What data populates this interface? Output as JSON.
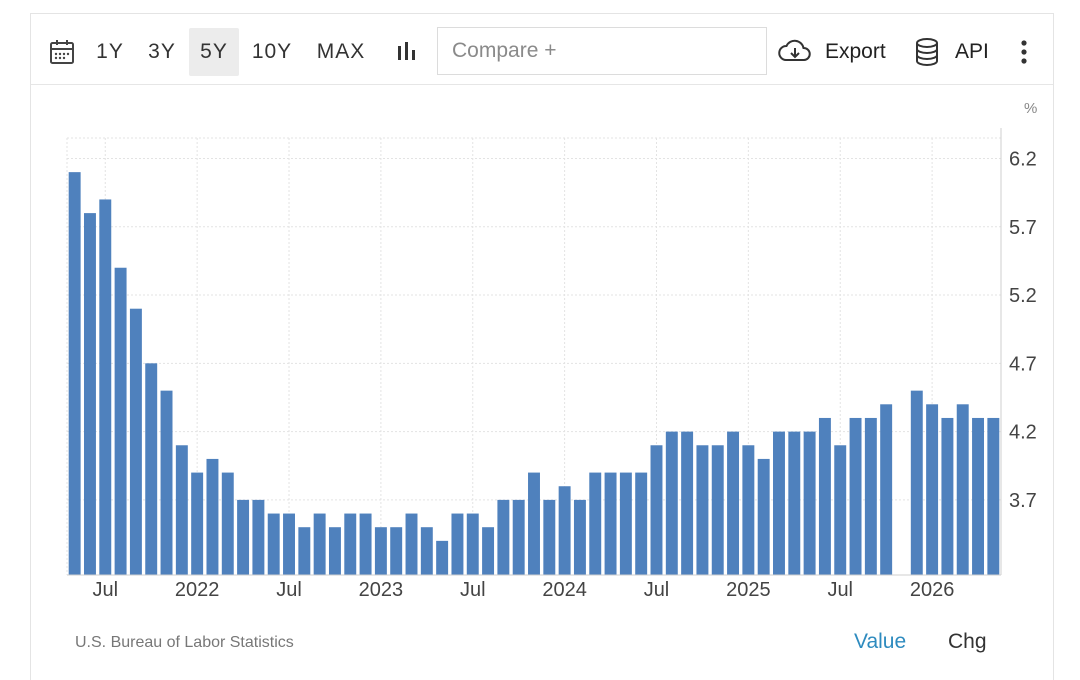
{
  "toolbar": {
    "ranges": [
      "1Y",
      "3Y",
      "5Y",
      "10Y",
      "MAX"
    ],
    "active_range": "5Y",
    "compare_placeholder": "Compare +",
    "export_label": "Export",
    "api_label": "API"
  },
  "footer": {
    "source": "U.S. Bureau of Labor Statistics",
    "tab_value": "Value",
    "tab_chg": "Chg"
  },
  "colors": {
    "bar": "#4f81bd",
    "accent": "#2e8bbf"
  },
  "chart_data": {
    "type": "bar",
    "unit": "%",
    "ylim": [
      3.15,
      6.35
    ],
    "yticks": [
      6.2,
      5.7,
      5.2,
      4.7,
      4.2,
      3.7
    ],
    "xticks": [
      {
        "label": "Jul",
        "index": 2
      },
      {
        "label": "2022",
        "index": 8
      },
      {
        "label": "Jul",
        "index": 14
      },
      {
        "label": "2023",
        "index": 20
      },
      {
        "label": "Jul",
        "index": 26
      },
      {
        "label": "2024",
        "index": 32
      },
      {
        "label": "Jul",
        "index": 38
      },
      {
        "label": "2025",
        "index": 44
      },
      {
        "label": "Jul",
        "index": 50
      },
      {
        "label": "2026",
        "index": 56
      }
    ],
    "values": [
      6.1,
      5.8,
      5.9,
      5.4,
      5.1,
      4.7,
      4.5,
      4.1,
      3.9,
      4.0,
      3.9,
      3.7,
      3.7,
      3.6,
      3.6,
      3.5,
      3.6,
      3.5,
      3.6,
      3.6,
      3.5,
      3.5,
      3.6,
      3.5,
      3.4,
      3.6,
      3.6,
      3.5,
      3.7,
      3.7,
      3.9,
      3.7,
      3.8,
      3.7,
      3.9,
      3.9,
      3.9,
      3.9,
      4.1,
      4.2,
      4.2,
      4.1,
      4.1,
      4.2,
      4.1,
      4.0,
      4.2,
      4.2,
      4.2,
      4.3,
      4.1,
      4.3,
      4.3,
      4.4,
      null,
      4.5,
      4.4,
      4.3,
      4.4,
      4.3,
      4.3
    ],
    "grid": true,
    "legend": "none"
  }
}
